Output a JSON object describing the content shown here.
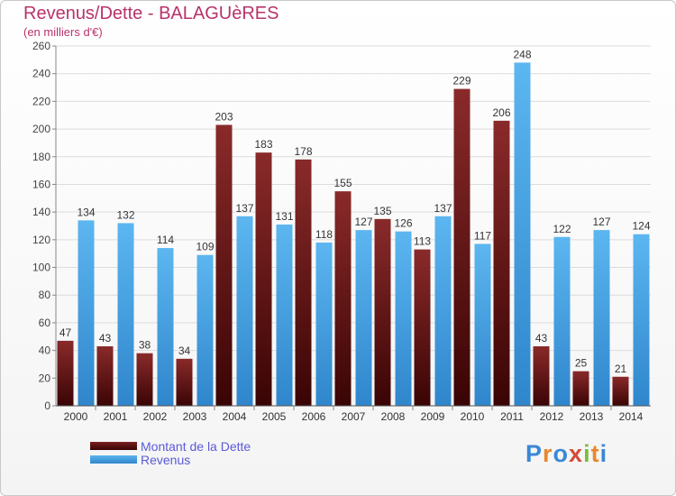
{
  "header": {
    "title": "Revenus/Dette - BALAGUèRES",
    "subtitle": "(en milliers d'€)"
  },
  "legend": {
    "items": [
      "Montant de la Dette",
      "Revenus"
    ]
  },
  "logo": {
    "letters": [
      "P",
      "r",
      "o",
      "x",
      "i",
      "t",
      "i"
    ]
  },
  "colors": {
    "dette": "#6b1414",
    "revenus": "#3d9ae0",
    "title": "#b8336a",
    "legend_text": "#5a5ad8"
  },
  "chart_data": {
    "type": "bar",
    "title": "Revenus/Dette - BALAGUèRES",
    "subtitle": "(en milliers d'€)",
    "categories": [
      "2000",
      "2001",
      "2002",
      "2003",
      "2004",
      "2005",
      "2006",
      "2007",
      "2008",
      "2009",
      "2010",
      "2011",
      "2012",
      "2013",
      "2014"
    ],
    "series": [
      {
        "name": "Montant de la Dette",
        "values": [
          47,
          43,
          38,
          34,
          203,
          183,
          178,
          155,
          135,
          113,
          229,
          206,
          43,
          25,
          21
        ]
      },
      {
        "name": "Revenus",
        "values": [
          134,
          132,
          114,
          109,
          137,
          131,
          118,
          127,
          126,
          137,
          117,
          248,
          122,
          127,
          124
        ]
      }
    ],
    "ylim": [
      0,
      260
    ],
    "yticks": [
      0,
      20,
      40,
      60,
      80,
      100,
      120,
      140,
      160,
      180,
      200,
      220,
      240,
      260
    ],
    "grid": true,
    "legend_position": "bottom-left"
  }
}
